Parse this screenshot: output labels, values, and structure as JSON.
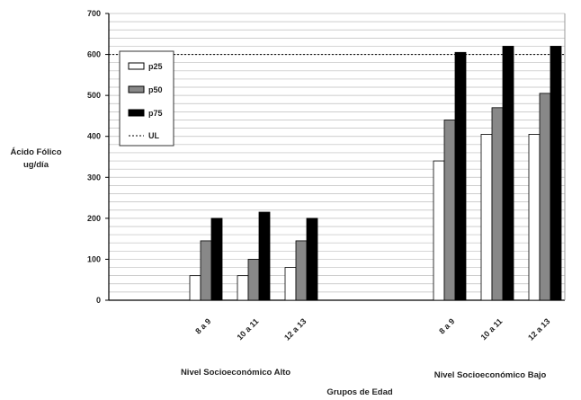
{
  "chart_data": {
    "type": "bar",
    "ylabel_lines": [
      "Ácido Fólico",
      "ug/día"
    ],
    "xlabel": "Grupos de Edad",
    "ylim": [
      0,
      700
    ],
    "yticks": [
      0,
      100,
      200,
      300,
      400,
      500,
      600,
      700
    ],
    "grid": true,
    "legend_position": "top-left",
    "groups": [
      {
        "name": "Nivel Socioeconómico Alto",
        "categories": [
          "8 a 9",
          "10 a 11",
          "12 a 13"
        ]
      },
      {
        "name": "Nivel Socioeconómico Bajo",
        "categories": [
          "8 a 9",
          "10 a 11",
          "12 a 13"
        ]
      }
    ],
    "series": [
      {
        "name": "p25",
        "color": "#ffffff",
        "values": [
          60,
          60,
          80,
          340,
          405,
          405
        ]
      },
      {
        "name": "p50",
        "color": "#888888",
        "values": [
          145,
          100,
          145,
          440,
          470,
          505
        ]
      },
      {
        "name": "p75",
        "color": "#000000",
        "values": [
          200,
          215,
          200,
          605,
          620,
          620
        ]
      }
    ],
    "reference_line": {
      "name": "UL",
      "value": 600,
      "style": "dotted"
    }
  }
}
